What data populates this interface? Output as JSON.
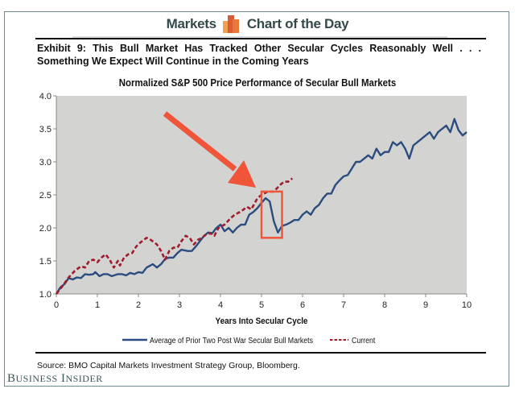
{
  "header": {
    "left_label": "Markets",
    "right_label": "Chart of the Day",
    "icon": "bar-chart-icon",
    "text_color": "#34484a",
    "icon_colors": [
      "#f0a050",
      "#d9542b",
      "#e8793a"
    ]
  },
  "exhibit": {
    "line1": "Exhibit 9: This Bull Market Has Tracked Other Secular Cycles Reasonably Well . . .",
    "line2": "Something We Expect Will Continue in the Coming Years"
  },
  "source": "Source: BMO Capital Markets Investment Strategy Group, Bloomberg.",
  "branding": {
    "first": "B",
    "first_rest": "USINESS",
    "second": "I",
    "second_rest": "NSIDER"
  },
  "annotations": {
    "arrow": "red-arrow-pointing-to-drop",
    "highlight_box": {
      "x_range": [
        5.0,
        5.5
      ],
      "y_range": [
        1.85,
        2.55
      ]
    },
    "color": "#f0553a"
  },
  "chart_data": {
    "type": "line",
    "title": "Normalized S&P 500 Price Performance of Secular Bull Markets",
    "xlabel": "Years Into Secular Cycle",
    "ylabel": "",
    "xlim": [
      0,
      10
    ],
    "ylim": [
      1.0,
      4.0
    ],
    "x_ticks": [
      "0",
      "1",
      "2",
      "3",
      "4",
      "5",
      "6",
      "7",
      "8",
      "9",
      "10"
    ],
    "y_ticks": [
      "1.0",
      "1.5",
      "2.0",
      "2.5",
      "3.0",
      "3.5",
      "4.0"
    ],
    "grid": false,
    "plot_background": "#d3d3d2",
    "legend_position": "bottom",
    "series": [
      {
        "name": "Average of Prior Two Post War Secular Bull Markets",
        "color": "#2b4c7e",
        "style": "solid",
        "points": [
          [
            0,
            1.0
          ],
          [
            0.1,
            1.1
          ],
          [
            0.2,
            1.15
          ],
          [
            0.3,
            1.24
          ],
          [
            0.4,
            1.22
          ],
          [
            0.5,
            1.25
          ],
          [
            0.6,
            1.24
          ],
          [
            0.7,
            1.3
          ],
          [
            0.8,
            1.29
          ],
          [
            0.9,
            1.3
          ],
          [
            0.95,
            1.33
          ],
          [
            1.05,
            1.27
          ],
          [
            1.15,
            1.3
          ],
          [
            1.25,
            1.3
          ],
          [
            1.35,
            1.27
          ],
          [
            1.5,
            1.3
          ],
          [
            1.6,
            1.3
          ],
          [
            1.7,
            1.28
          ],
          [
            1.8,
            1.32
          ],
          [
            1.9,
            1.3
          ],
          [
            2.0,
            1.33
          ],
          [
            2.1,
            1.32
          ],
          [
            2.2,
            1.4
          ],
          [
            2.35,
            1.45
          ],
          [
            2.45,
            1.4
          ],
          [
            2.55,
            1.45
          ],
          [
            2.65,
            1.53
          ],
          [
            2.75,
            1.55
          ],
          [
            2.85,
            1.55
          ],
          [
            2.95,
            1.62
          ],
          [
            3.05,
            1.67
          ],
          [
            3.2,
            1.65
          ],
          [
            3.3,
            1.65
          ],
          [
            3.4,
            1.72
          ],
          [
            3.5,
            1.8
          ],
          [
            3.6,
            1.88
          ],
          [
            3.7,
            1.93
          ],
          [
            3.8,
            1.92
          ],
          [
            3.9,
            2.0
          ],
          [
            4.0,
            2.05
          ],
          [
            4.1,
            1.95
          ],
          [
            4.2,
            2.0
          ],
          [
            4.3,
            1.93
          ],
          [
            4.4,
            2.0
          ],
          [
            4.5,
            2.05
          ],
          [
            4.6,
            2.05
          ],
          [
            4.7,
            2.2
          ],
          [
            4.8,
            2.24
          ],
          [
            4.9,
            2.3
          ],
          [
            5.0,
            2.38
          ],
          [
            5.1,
            2.45
          ],
          [
            5.2,
            2.4
          ],
          [
            5.3,
            2.1
          ],
          [
            5.4,
            1.93
          ],
          [
            5.5,
            2.03
          ],
          [
            5.6,
            2.05
          ],
          [
            5.7,
            2.08
          ],
          [
            5.8,
            2.12
          ],
          [
            5.9,
            2.12
          ],
          [
            6.0,
            2.2
          ],
          [
            6.1,
            2.25
          ],
          [
            6.2,
            2.2
          ],
          [
            6.3,
            2.3
          ],
          [
            6.4,
            2.35
          ],
          [
            6.5,
            2.45
          ],
          [
            6.6,
            2.52
          ],
          [
            6.7,
            2.52
          ],
          [
            6.8,
            2.65
          ],
          [
            6.9,
            2.72
          ],
          [
            7.0,
            2.78
          ],
          [
            7.1,
            2.8
          ],
          [
            7.2,
            2.9
          ],
          [
            7.3,
            3.0
          ],
          [
            7.4,
            3.0
          ],
          [
            7.5,
            3.05
          ],
          [
            7.6,
            3.1
          ],
          [
            7.7,
            3.05
          ],
          [
            7.8,
            3.2
          ],
          [
            7.9,
            3.1
          ],
          [
            8.0,
            3.15
          ],
          [
            8.1,
            3.15
          ],
          [
            8.2,
            3.3
          ],
          [
            8.3,
            3.25
          ],
          [
            8.4,
            3.3
          ],
          [
            8.5,
            3.2
          ],
          [
            8.6,
            3.05
          ],
          [
            8.7,
            3.25
          ],
          [
            8.8,
            3.3
          ],
          [
            8.9,
            3.35
          ],
          [
            9.0,
            3.4
          ],
          [
            9.1,
            3.45
          ],
          [
            9.2,
            3.35
          ],
          [
            9.3,
            3.45
          ],
          [
            9.4,
            3.5
          ],
          [
            9.5,
            3.55
          ],
          [
            9.6,
            3.45
          ],
          [
            9.7,
            3.65
          ],
          [
            9.8,
            3.48
          ],
          [
            9.9,
            3.4
          ],
          [
            10.0,
            3.45
          ]
        ]
      },
      {
        "name": "Current",
        "color": "#a01c2a",
        "style": "dashed",
        "points": [
          [
            0,
            1.0
          ],
          [
            0.15,
            1.12
          ],
          [
            0.3,
            1.25
          ],
          [
            0.45,
            1.35
          ],
          [
            0.6,
            1.42
          ],
          [
            0.7,
            1.4
          ],
          [
            0.8,
            1.5
          ],
          [
            0.9,
            1.52
          ],
          [
            1.0,
            1.48
          ],
          [
            1.1,
            1.55
          ],
          [
            1.2,
            1.6
          ],
          [
            1.3,
            1.52
          ],
          [
            1.4,
            1.4
          ],
          [
            1.5,
            1.5
          ],
          [
            1.55,
            1.43
          ],
          [
            1.65,
            1.55
          ],
          [
            1.75,
            1.6
          ],
          [
            1.85,
            1.62
          ],
          [
            1.95,
            1.72
          ],
          [
            2.05,
            1.78
          ],
          [
            2.2,
            1.85
          ],
          [
            2.3,
            1.82
          ],
          [
            2.45,
            1.75
          ],
          [
            2.55,
            1.65
          ],
          [
            2.65,
            1.52
          ],
          [
            2.75,
            1.65
          ],
          [
            2.85,
            1.7
          ],
          [
            2.95,
            1.7
          ],
          [
            3.05,
            1.8
          ],
          [
            3.15,
            1.88
          ],
          [
            3.25,
            1.85
          ],
          [
            3.35,
            1.75
          ],
          [
            3.45,
            1.82
          ],
          [
            3.55,
            1.85
          ],
          [
            3.65,
            1.9
          ],
          [
            3.75,
            1.92
          ],
          [
            3.85,
            1.88
          ],
          [
            3.95,
            2.0
          ],
          [
            4.1,
            2.05
          ],
          [
            4.25,
            2.15
          ],
          [
            4.35,
            2.2
          ],
          [
            4.5,
            2.25
          ],
          [
            4.65,
            2.32
          ],
          [
            4.75,
            2.28
          ],
          [
            4.9,
            2.45
          ],
          [
            5.0,
            2.5
          ],
          [
            5.15,
            2.55
          ],
          [
            5.3,
            2.55
          ],
          [
            5.45,
            2.65
          ],
          [
            5.55,
            2.7
          ],
          [
            5.65,
            2.7
          ],
          [
            5.75,
            2.75
          ]
        ]
      }
    ]
  }
}
